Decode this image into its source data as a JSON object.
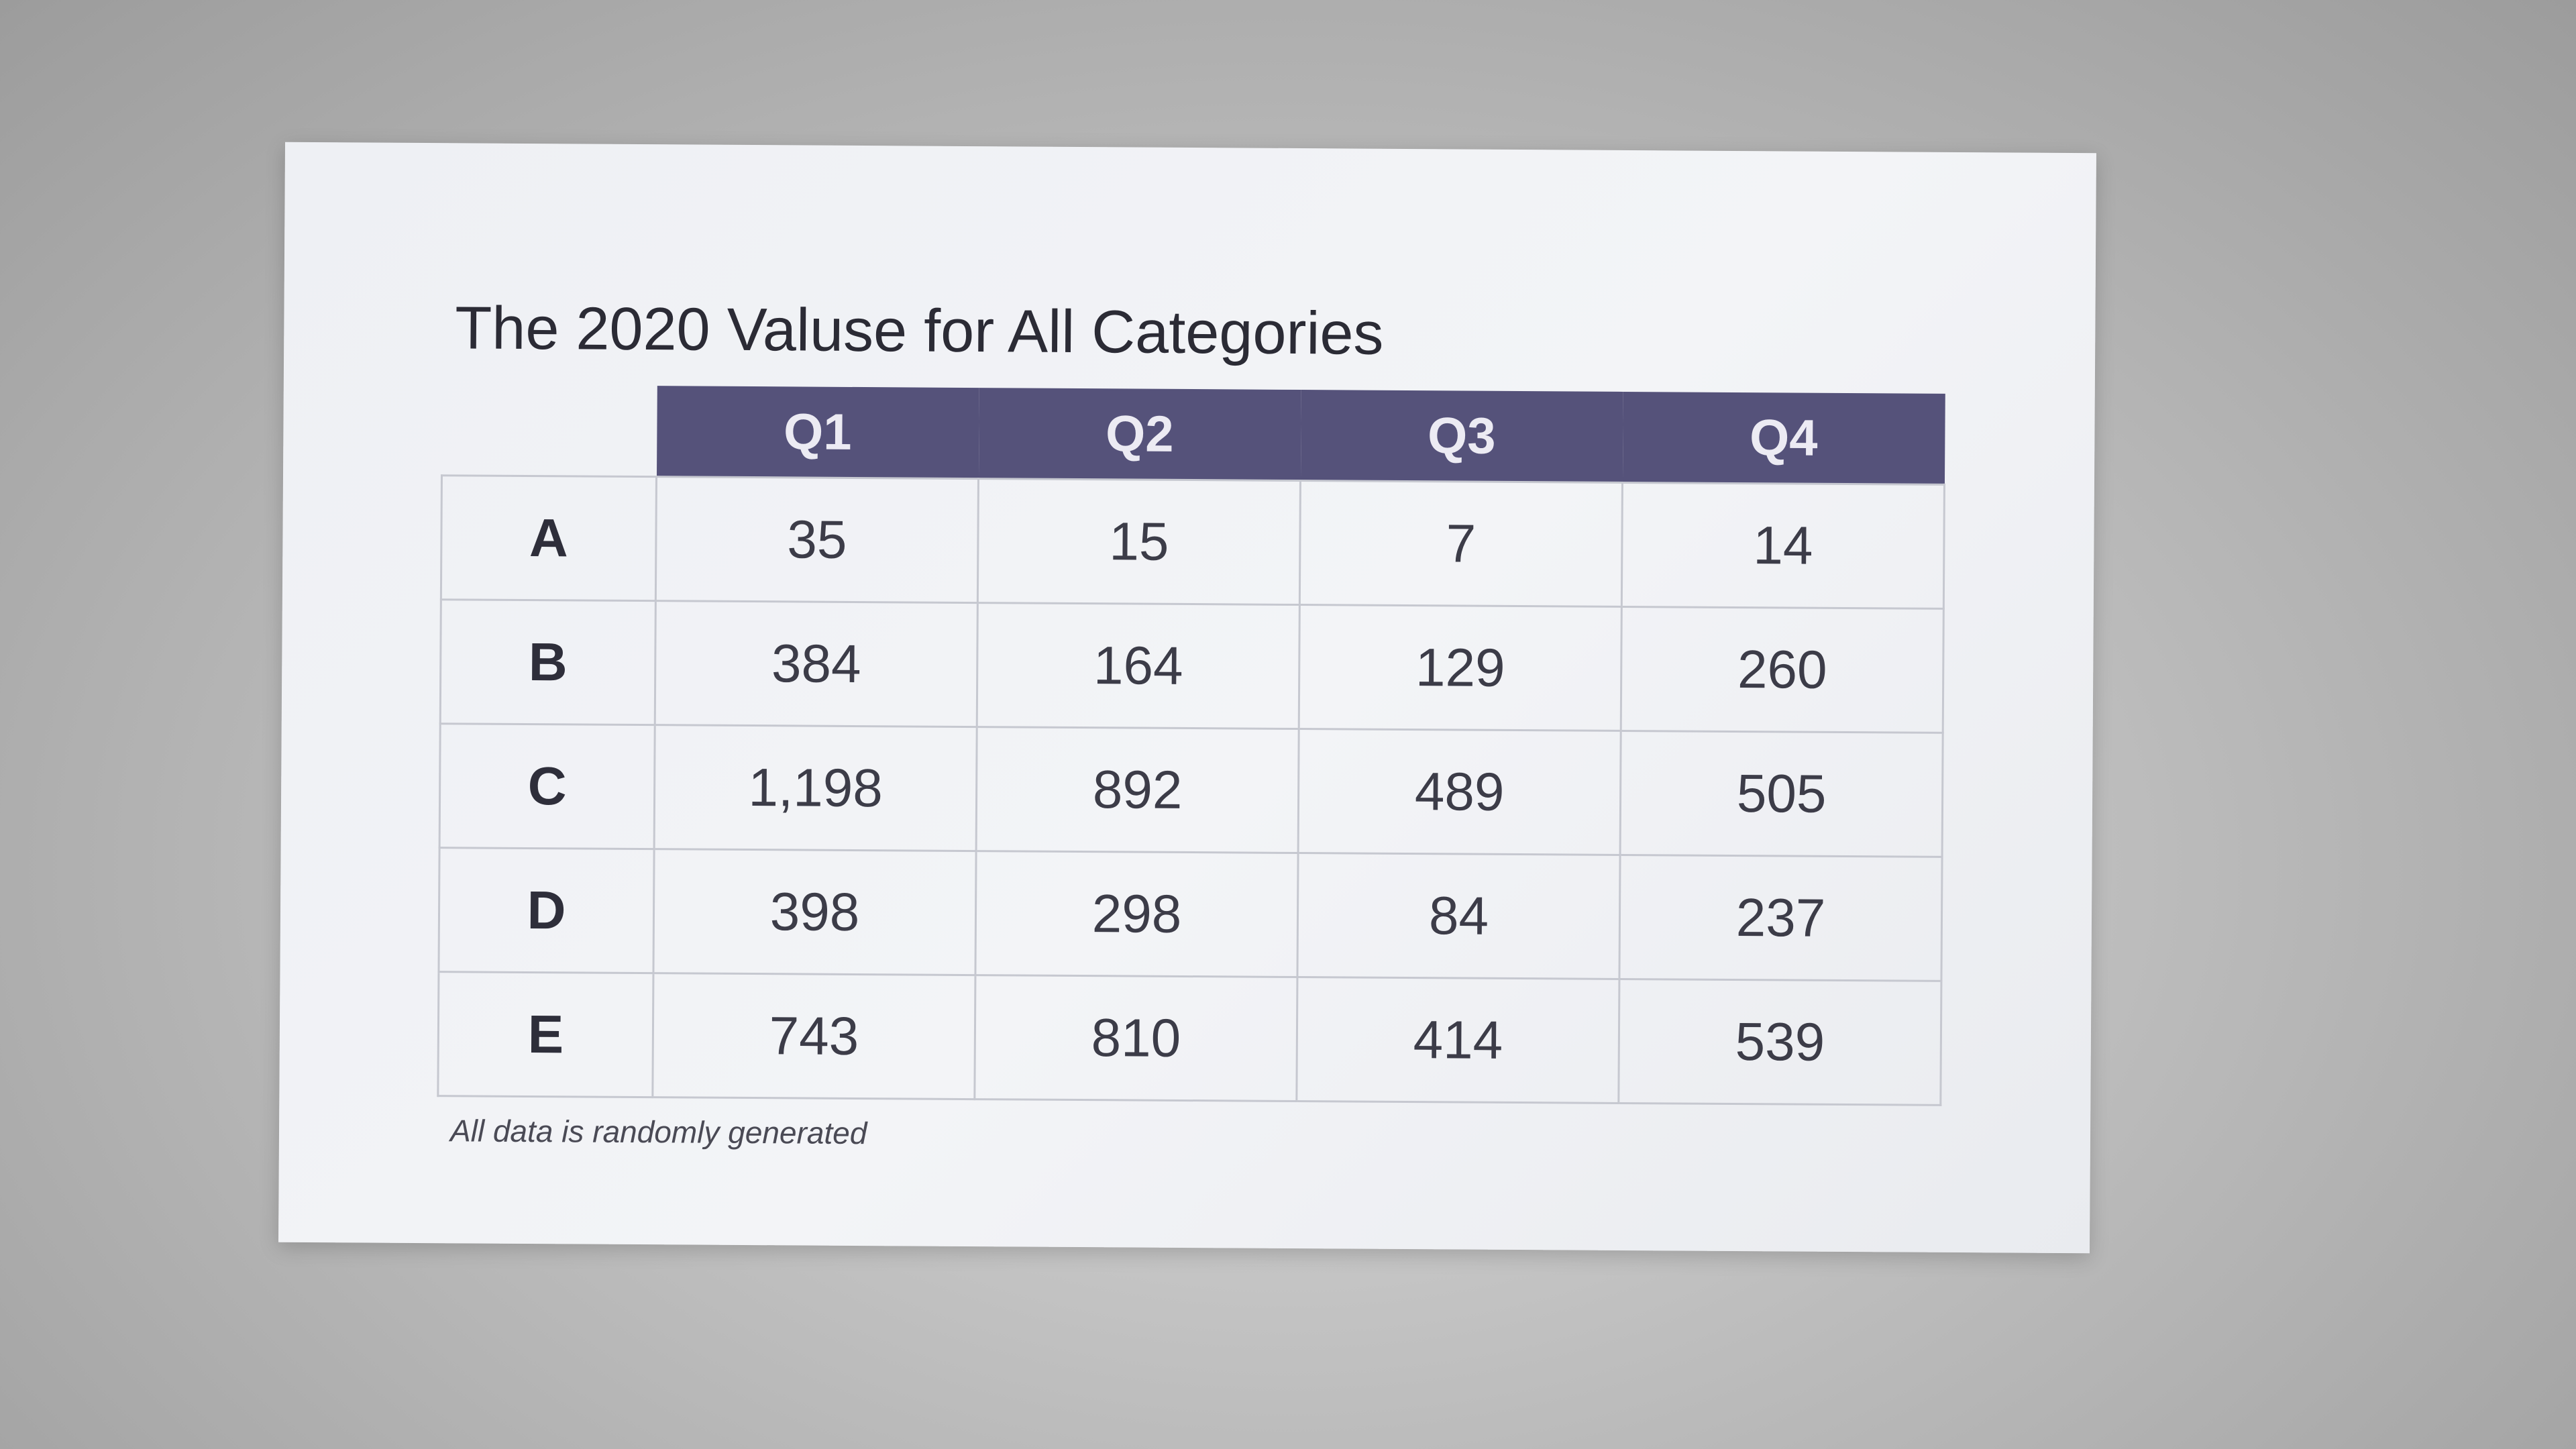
{
  "chart_data": {
    "type": "table",
    "title": "The 2020 Valuse for All Categories",
    "columns": [
      "Q1",
      "Q2",
      "Q3",
      "Q4"
    ],
    "rows": [
      {
        "label": "A",
        "values": [
          "35",
          "15",
          "7",
          "14"
        ]
      },
      {
        "label": "B",
        "values": [
          "384",
          "164",
          "129",
          "260"
        ]
      },
      {
        "label": "C",
        "values": [
          "1,198",
          "892",
          "489",
          "505"
        ]
      },
      {
        "label": "D",
        "values": [
          "398",
          "298",
          "84",
          "237"
        ]
      },
      {
        "label": "E",
        "values": [
          "743",
          "810",
          "414",
          "539"
        ]
      }
    ],
    "note": "All data is randomly generated",
    "colors": {
      "header_background": "#55527a",
      "header_text": "#ecebf3",
      "cell_border": "#c6c8d0"
    }
  }
}
